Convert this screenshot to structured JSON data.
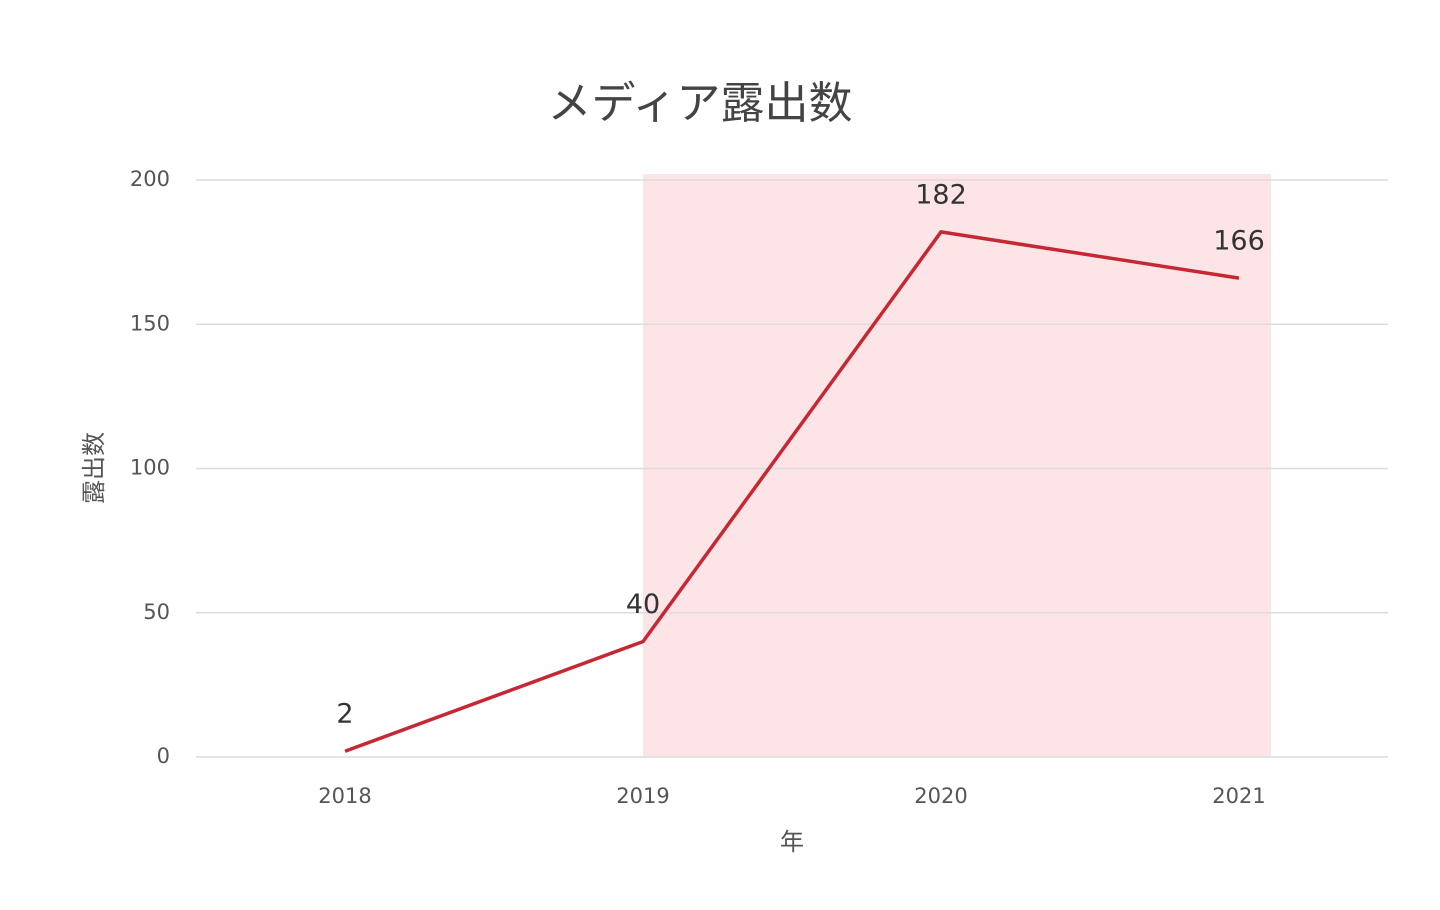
{
  "chart_data": {
    "type": "line",
    "title": "メディア露出数",
    "x_label": "年",
    "y_label": "露出数",
    "categories": [
      "2018",
      "2019",
      "2020",
      "2021"
    ],
    "series": [
      {
        "name": "露出数",
        "color": "#c62833",
        "values": [
          2,
          40,
          182,
          166
        ]
      }
    ],
    "ylim": [
      0,
      200
    ],
    "yticks": [
      0,
      50,
      100,
      150,
      200
    ],
    "grid": true,
    "data_labels": true
  }
}
